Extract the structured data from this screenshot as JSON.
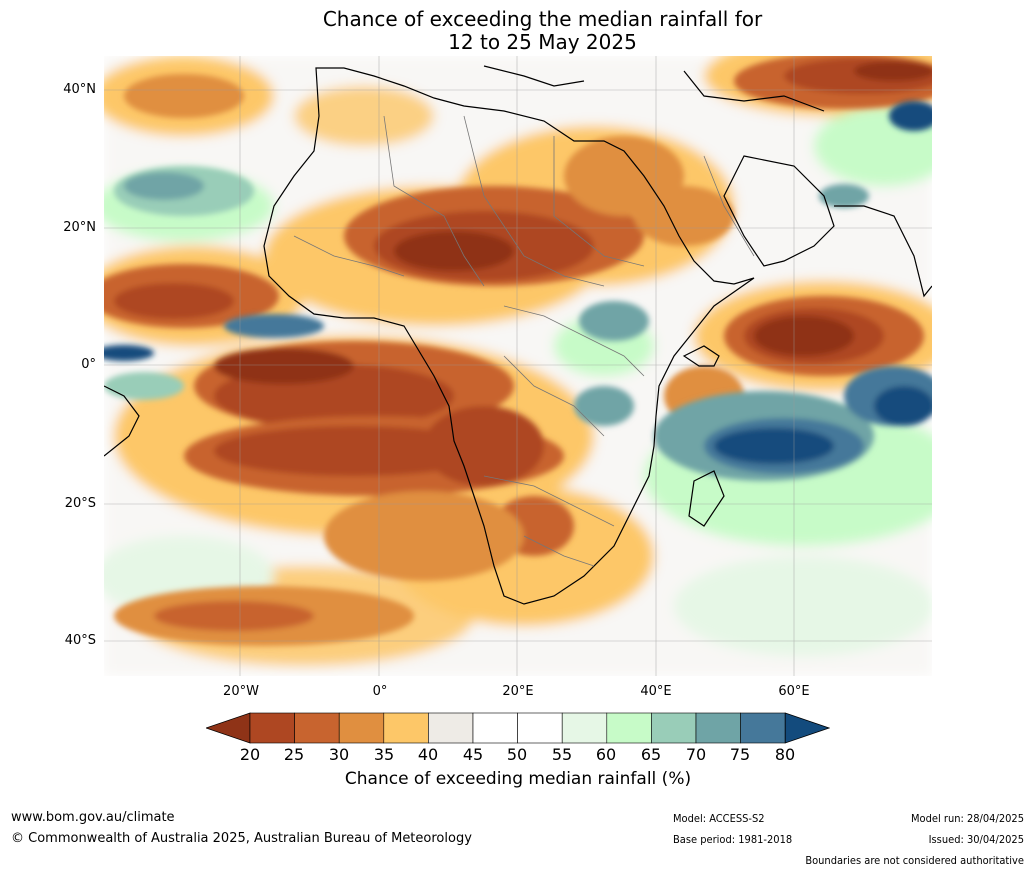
{
  "title": {
    "line1": "Chance of exceeding the median rainfall for",
    "line2": "12 to 25 May 2025"
  },
  "map": {
    "lat_labels": [
      "40°N",
      "20°N",
      "0°",
      "20°S",
      "40°S"
    ],
    "lon_labels": [
      "20°W",
      "0°",
      "20°E",
      "40°E",
      "60°E"
    ],
    "colors": {
      "deep_brown": "#8f3317",
      "brown": "#ae4722",
      "rust": "#c8642f",
      "orange": "#e08f40",
      "light_orange": "#fdc768",
      "light_grey": "#eeebe6",
      "white": "#ffffff",
      "pale_green": "#e6f7e6",
      "light_green": "#c7fbc8",
      "sea_green": "#99cdb8",
      "teal": "#6fa4a6",
      "blue_teal": "#45789a",
      "navy": "#134b7d"
    }
  },
  "colorbar": {
    "ticks": [
      "20",
      "25",
      "30",
      "35",
      "40",
      "45",
      "50",
      "55",
      "60",
      "65",
      "70",
      "75",
      "80"
    ],
    "label": "Chance of exceeding median rainfall (%)",
    "colors": [
      "#8f3317",
      "#ae4722",
      "#c8642f",
      "#e08f40",
      "#fdc768",
      "#eeebe6",
      "#ffffff",
      "#ffffff",
      "#e6f7e6",
      "#c7fbc8",
      "#99cdb8",
      "#6fa4a6",
      "#45789a",
      "#134b7d"
    ]
  },
  "footer": {
    "website": "www.bom.gov.au/climate",
    "copyright": "© Commonwealth of Australia 2025, Australian Bureau of Meteorology",
    "model": "Model: ACCESS-S2",
    "base_period": "Base period: 1981-2018",
    "model_run": "Model run: 28/04/2025",
    "issued": "Issued: 30/04/2025",
    "disclaimer": "Boundaries are not considered authoritative"
  }
}
